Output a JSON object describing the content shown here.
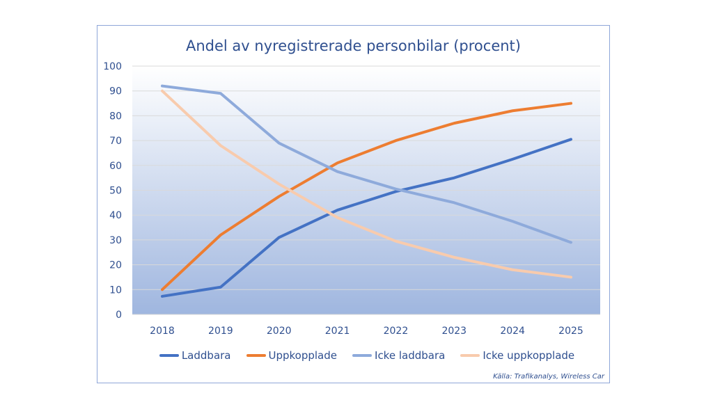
{
  "chart_data": {
    "type": "line",
    "title": "Andel av nyregistrerade personbilar (procent)",
    "xlabel": "",
    "ylabel": "",
    "x": [
      "2018",
      "2019",
      "2020",
      "2021",
      "2022",
      "2023",
      "2024",
      "2025"
    ],
    "ylim": [
      0,
      100
    ],
    "yticks": [
      "0",
      "10",
      "20",
      "30",
      "40",
      "50",
      "60",
      "70",
      "80",
      "90",
      "100"
    ],
    "grid": true,
    "legend_position": "bottom",
    "series": [
      {
        "name": "Laddbara",
        "color": "#4472c4",
        "values": [
          7.3,
          11,
          31,
          42,
          49.5,
          55,
          62.5,
          70.5
        ]
      },
      {
        "name": "Uppkopplade",
        "color": "#ed7d31",
        "values": [
          10,
          32,
          47.5,
          61,
          70,
          77,
          82,
          85
        ]
      },
      {
        "name": "Icke laddbara",
        "color": "#8eaadb",
        "values": [
          92,
          89,
          69,
          57.5,
          50.5,
          45,
          37.5,
          29
        ]
      },
      {
        "name": "Icke uppkopplade",
        "color": "#f8cbad",
        "values": [
          90,
          68,
          52.5,
          39,
          29.5,
          23,
          18,
          15
        ]
      }
    ],
    "source": "Källa: Trafikanalys, Wireless Car"
  }
}
